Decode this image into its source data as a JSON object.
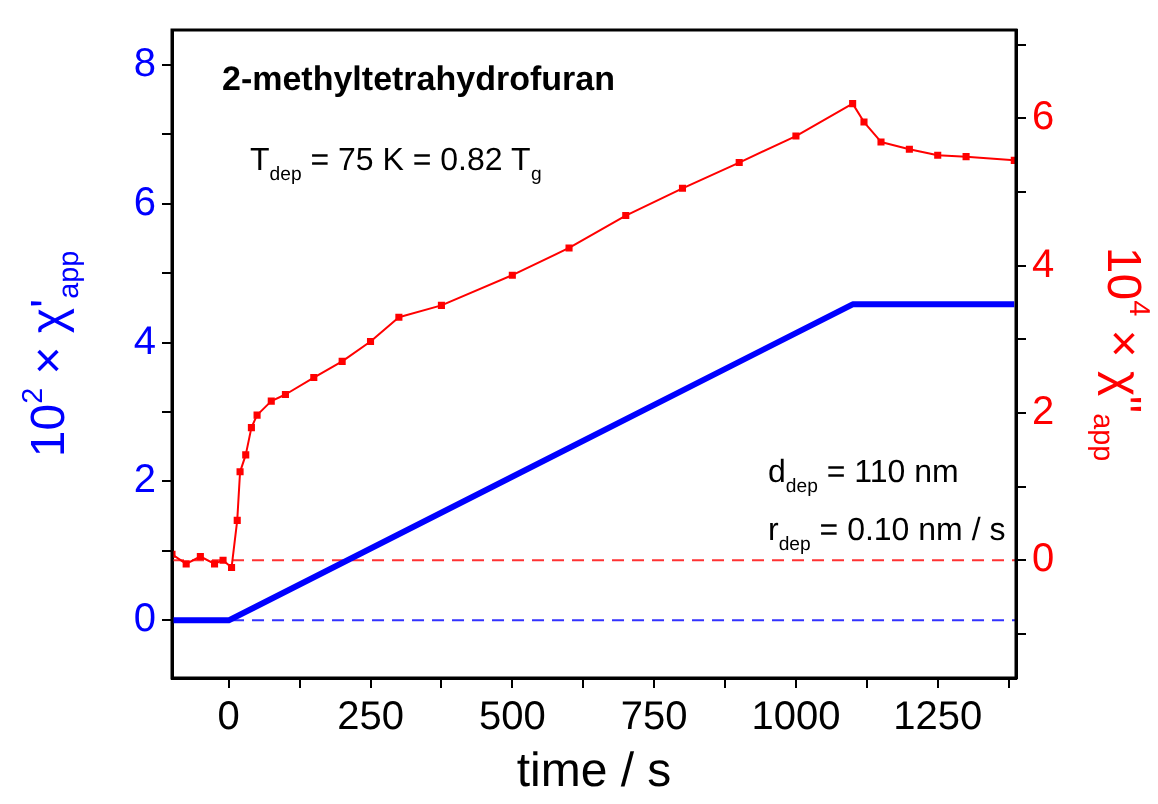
{
  "chart_data": {
    "type": "line",
    "title": "2-methyltetrahydrofuran",
    "xlabel": "time / s",
    "ylabel": "10$^{2}$ × χ'$_{app}$",
    "y2label": "10$^{4}$ × χ\"$_{app}$",
    "annotations": [
      "T$_{dep}$ = 75 K = 0.82 T$_{g}$",
      "d$_{dep}$ = 110 nm",
      "r$_{dep}$ = 0.10 nm / s"
    ],
    "xlim": [
      -100,
      1388
    ],
    "xticks": [
      0,
      {
        "value": 125,
        "label": null
      },
      250,
      {
        "value": 375,
        "label": null
      },
      500,
      {
        "value": 625,
        "label": null
      },
      750,
      {
        "value": 875,
        "label": null
      },
      1000,
      {
        "value": 1125,
        "label": null
      },
      1250,
      {
        "value": 1375,
        "label": null
      }
    ],
    "ylim": [
      -0.83,
      8.5
    ],
    "yticks": [
      0,
      {
        "value": 1,
        "label": null
      },
      2,
      {
        "value": 3,
        "label": null
      },
      4,
      {
        "value": 5,
        "label": null
      },
      6,
      {
        "value": 7,
        "label": null
      },
      8
    ],
    "y2lim": [
      -1.6,
      7.2
    ],
    "y2ticks": [
      {
        "value": -1,
        "label": null
      },
      0,
      {
        "value": 1,
        "label": null
      },
      2,
      {
        "value": 3,
        "label": null
      },
      4,
      {
        "value": 5,
        "label": null
      },
      6,
      {
        "value": 7,
        "label": null
      }
    ],
    "grid": false,
    "legend": false,
    "ref_lines": [
      {
        "axis": "y",
        "value": 0,
        "color": "#3333ff",
        "line_style": "dashed"
      },
      {
        "axis": "y2",
        "value": 0,
        "color": "#ff3333",
        "line_style": "dashed"
      }
    ],
    "series": [
      {
        "color": "#0000ff",
        "marker": "none",
        "x": [
          -100,
          0,
          1100,
          1385
        ],
        "values": [
          0,
          0,
          4.55,
          4.55
        ]
      },
      {
        "color": "#ff0000",
        "axis": "y2",
        "marker": "square",
        "x": [
          -100,
          -75,
          -50,
          -25,
          -10,
          5,
          15,
          20,
          30,
          40,
          50,
          75,
          100,
          150,
          200,
          250,
          300,
          375,
          500,
          600,
          700,
          800,
          900,
          1000,
          1100,
          1120,
          1150,
          1200,
          1250,
          1300,
          1385
        ],
        "values": [
          0.08,
          -0.05,
          0.05,
          -0.05,
          0.0,
          -0.1,
          0.54,
          1.2,
          1.43,
          1.8,
          1.97,
          2.16,
          2.25,
          2.48,
          2.7,
          2.97,
          3.3,
          3.46,
          3.87,
          4.24,
          4.68,
          5.05,
          5.4,
          5.76,
          6.2,
          5.95,
          5.68,
          5.58,
          5.5,
          5.48,
          5.43
        ]
      }
    ]
  }
}
